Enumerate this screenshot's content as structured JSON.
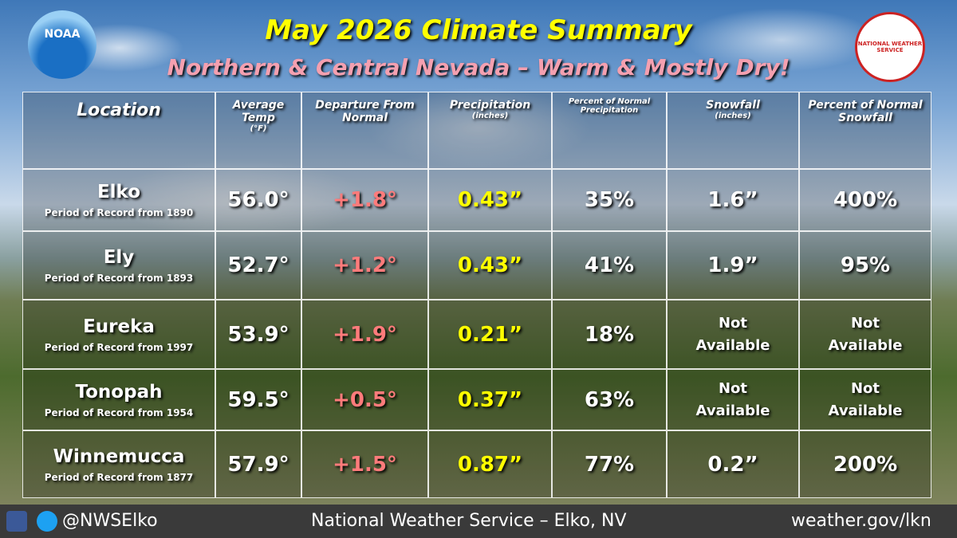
{
  "header": {
    "title": "May 2026 Climate Summary",
    "subtitle": "Northern & Central Nevada – Warm & Mostly Dry!",
    "left_logo": "NOAA",
    "right_logo": "NATIONAL WEATHER SERVICE"
  },
  "table": {
    "columns": [
      {
        "label": "Location"
      },
      {
        "label": "Average Temp",
        "unit": "(°F)"
      },
      {
        "label": "Departure From Normal"
      },
      {
        "label": "Precipitation",
        "unit": "(inches)"
      },
      {
        "label": "Percent of Normal Precipitation"
      },
      {
        "label": "Snowfall",
        "unit": "(inches)"
      },
      {
        "label": "Percent of Normal Snowfall"
      }
    ],
    "rows": [
      {
        "location": "Elko",
        "period": "Period of Record from 1890",
        "cells": [
          "56.0°",
          "+1.8°",
          "0.43”",
          "35%",
          "1.6”",
          "400%"
        ]
      },
      {
        "location": "Ely",
        "period": "Period of Record from 1893",
        "cells": [
          "52.7°",
          "+1.2°",
          "0.43”",
          "41%",
          "1.9”",
          "95%"
        ]
      },
      {
        "location": "Eureka",
        "period": "Period of Record from 1997",
        "cells": [
          "53.9°",
          "+1.9°",
          "0.21”",
          "18%",
          "Not Available",
          "Not Available"
        ]
      },
      {
        "location": "Tonopah",
        "period": "Period of Record from 1954",
        "cells": [
          "59.5°",
          "+0.5°",
          "0.37”",
          "63%",
          "Not Available",
          "Not Available"
        ]
      },
      {
        "location": "Winnemucca",
        "period": "Period of Record from 1877",
        "cells": [
          "57.9°",
          "+1.5°",
          "0.87”",
          "77%",
          "0.2”",
          "200%"
        ]
      }
    ]
  },
  "footer": {
    "handle": "@NWSElko",
    "office": "National Weather Service – Elko, NV",
    "url": "weather.gov/lkn"
  }
}
